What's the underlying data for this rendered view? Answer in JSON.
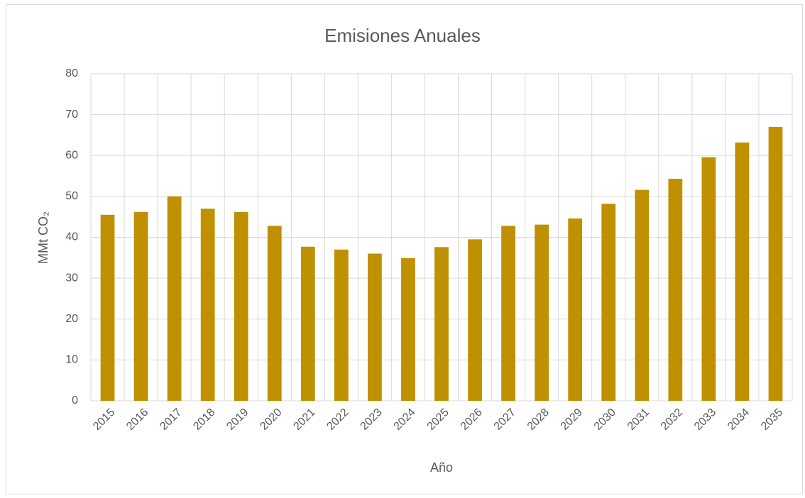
{
  "chart_data": {
    "type": "bar",
    "title": "Emisiones Anuales",
    "x_label": "Año",
    "y_label": "MMt CO₂",
    "categories": [
      "2015",
      "2016",
      "2017",
      "2018",
      "2019",
      "2020",
      "2021",
      "2022",
      "2023",
      "2024",
      "2025",
      "2026",
      "2027",
      "2028",
      "2029",
      "2030",
      "2031",
      "2032",
      "2033",
      "2034",
      "2035"
    ],
    "values": [
      45.5,
      46.2,
      50,
      47,
      46.2,
      42.8,
      37.7,
      37,
      36,
      34.9,
      37.6,
      39.5,
      42.8,
      43.1,
      44.6,
      48.2,
      51.6,
      54.3,
      59.6,
      63.2,
      67
    ],
    "color": "#bf9000",
    "ylim": [
      0,
      80
    ],
    "yticks": [
      0,
      10,
      20,
      30,
      40,
      50,
      60,
      70,
      80
    ],
    "grid": true
  }
}
